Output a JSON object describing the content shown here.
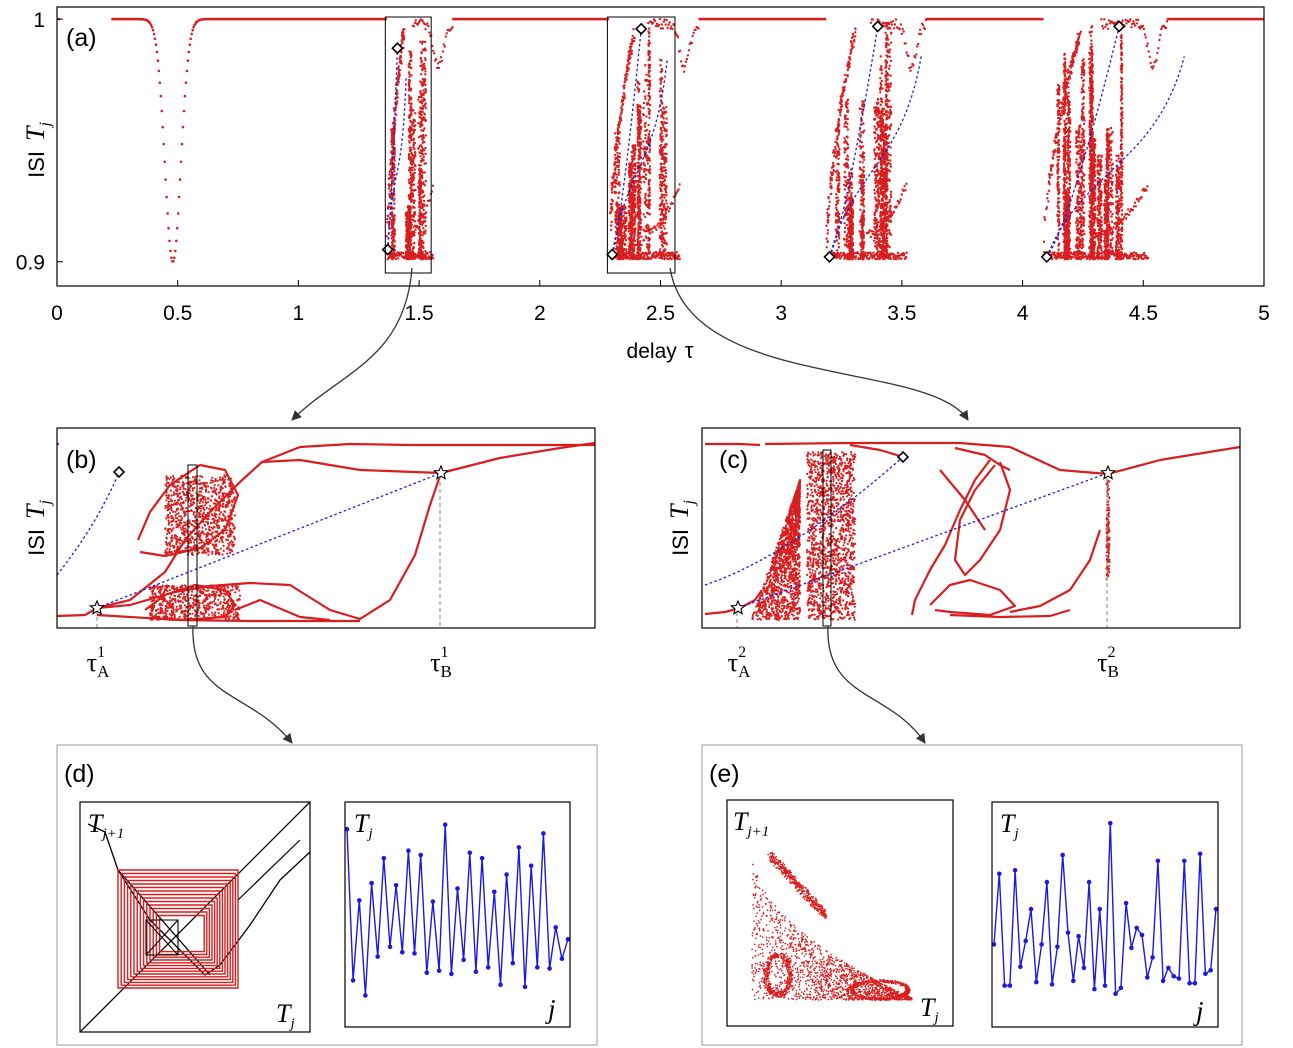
{
  "chart_data": [
    {
      "panel_label": "(a)",
      "type": "scatter",
      "ylabel_prefix": "ISI",
      "ylabel_var": "T",
      "ylabel_sub": "j",
      "xlabel_text": "delay",
      "xlabel_symbol": "τ",
      "xlim": [
        0,
        5
      ],
      "ylim": [
        0.89,
        1.005
      ],
      "x_ticks": [
        "0",
        "0.5",
        "1",
        "1.5",
        "2",
        "2.5",
        "3",
        "3.5",
        "4",
        "4.5",
        "5"
      ],
      "y_ticks": [
        "0.9",
        "1"
      ],
      "dip": {
        "center": 0.48,
        "min": 0.9
      },
      "chaotic_windows": [
        {
          "range": [
            1.37,
            1.56
          ],
          "diamonds": [
            {
              "x": 1.37,
              "y": 0.905
            },
            {
              "x": 1.41,
              "y": 0.988
            }
          ]
        },
        {
          "range": [
            2.29,
            2.58
          ],
          "diamonds": [
            {
              "x": 2.3,
              "y": 0.903
            },
            {
              "x": 2.42,
              "y": 0.996
            }
          ]
        },
        {
          "range": [
            3.19,
            3.52
          ],
          "diamonds": [
            {
              "x": 3.2,
              "y": 0.902
            },
            {
              "x": 3.4,
              "y": 0.997
            }
          ]
        },
        {
          "range": [
            4.09,
            4.52
          ],
          "diamonds": [
            {
              "x": 4.1,
              "y": 0.902
            },
            {
              "x": 4.4,
              "y": 0.997
            }
          ]
        }
      ],
      "zoom_boxes": [
        {
          "x0": 1.36,
          "x1": 1.55
        },
        {
          "x0": 2.28,
          "x1": 2.56
        }
      ]
    },
    {
      "panel_label": "(b)",
      "type": "scatter",
      "ylabel_prefix": "ISI",
      "ylabel_var": "T",
      "ylabel_sub": "j",
      "markers": [
        {
          "symbol": "τ",
          "sub": "A",
          "sup": "1"
        },
        {
          "symbol": "τ",
          "sub": "B",
          "sup": "1"
        }
      ]
    },
    {
      "panel_label": "(c)",
      "type": "scatter",
      "ylabel_prefix": "ISI",
      "ylabel_var": "T",
      "ylabel_sub": "j",
      "markers": [
        {
          "symbol": "τ",
          "sub": "A",
          "sup": "2"
        },
        {
          "symbol": "τ",
          "sub": "B",
          "sup": "2"
        }
      ]
    },
    {
      "panel_label": "(d)",
      "type": "line",
      "map_xlabel": {
        "var": "T",
        "sub": "j"
      },
      "map_ylabel": {
        "var": "T",
        "sub": "j+1"
      },
      "series_ylabel": {
        "var": "T",
        "sub": "j"
      },
      "series_xlabel": "j",
      "series_values": [
        1.72,
        0.32,
        1.06,
        0.18,
        1.22,
        0.54,
        1.45,
        0.63,
        1.2,
        0.58,
        1.52,
        0.57,
        1.48,
        0.39,
        1.05,
        0.41,
        1.76,
        0.38,
        1.17,
        0.51,
        1.5,
        0.4,
        1.45,
        0.44,
        1.14,
        0.28,
        1.3,
        0.48,
        1.55,
        0.26,
        1.38,
        0.44,
        1.68,
        0.43,
        0.81,
        0.52,
        0.7
      ]
    },
    {
      "panel_label": "(e)",
      "type": "line",
      "map_xlabel": {
        "var": "T",
        "sub": "j"
      },
      "map_ylabel": {
        "var": "T",
        "sub": "j+1"
      },
      "series_ylabel": {
        "var": "T",
        "sub": "j"
      },
      "series_xlabel": "j",
      "series_values": [
        0.75,
        1.35,
        0.4,
        0.4,
        1.38,
        0.56,
        0.78,
        1.05,
        0.43,
        0.75,
        1.28,
        0.41,
        0.73,
        1.51,
        0.85,
        0.44,
        0.82,
        0.55,
        1.28,
        0.37,
        1.05,
        0.4,
        1.78,
        0.33,
        0.38,
        1.1,
        0.72,
        0.89,
        0.83,
        0.47,
        0.64,
        1.46,
        0.44,
        0.55,
        0.48,
        0.46,
        1.46,
        0.42,
        0.42,
        1.52,
        0.5,
        0.53,
        1.05
      ]
    }
  ]
}
